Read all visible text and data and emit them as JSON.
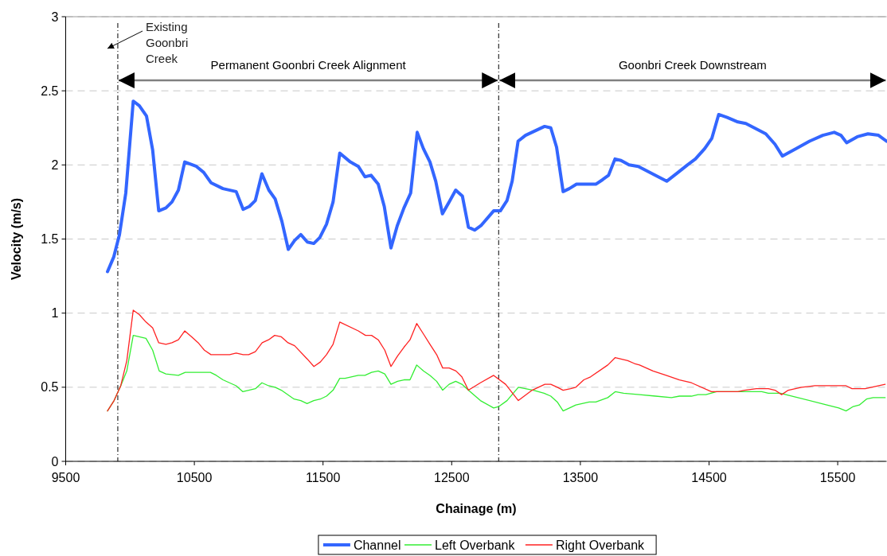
{
  "chart_data": {
    "type": "line",
    "xlabel": "Chainage (m)",
    "ylabel": "Velocity (m/s)",
    "xlim": [
      9500,
      15880
    ],
    "xticks": [
      9500,
      10500,
      11500,
      12500,
      13500,
      14500,
      15500
    ],
    "ylim": [
      0,
      3
    ],
    "yticks": [
      0,
      0.5,
      1,
      1.5,
      2,
      2.5,
      3
    ],
    "grid": "y",
    "legend": "bottom",
    "marker": "none",
    "series": [
      {
        "name": "Channel",
        "color": "#3366ff",
        "x": [
          9825,
          9874,
          9918,
          9967,
          10025,
          10072,
          10128,
          10176,
          10223,
          10279,
          10326,
          10376,
          10425,
          10516,
          10572,
          10629,
          10722,
          10825,
          10879,
          10928,
          10974,
          11025,
          11079,
          11128,
          11180,
          11230,
          11279,
          11327,
          11378,
          11428,
          11475,
          11527,
          11578,
          11630,
          11712,
          11774,
          11826,
          11873,
          11929,
          11976,
          12028,
          12077,
          12129,
          12181,
          12232,
          12280,
          12331,
          12376,
          12428,
          12480,
          12531,
          12583,
          12630,
          12678,
          12727,
          12826,
          12878,
          12930,
          12970,
          13016,
          13074,
          13222,
          13270,
          13315,
          13366,
          13414,
          13470,
          13620,
          13672,
          13719,
          13769,
          13816,
          13878,
          13950,
          14105,
          14171,
          14260,
          14332,
          14394,
          14466,
          14522,
          14575,
          14641,
          14724,
          14786,
          14941,
          15012,
          15070,
          15178,
          15281,
          15384,
          15473,
          15525,
          15569,
          15652,
          15735,
          15817,
          15879
        ],
        "values": [
          1.28,
          1.38,
          1.53,
          1.81,
          2.43,
          2.4,
          2.33,
          2.1,
          1.69,
          1.71,
          1.75,
          1.83,
          2.02,
          1.99,
          1.95,
          1.88,
          1.84,
          1.82,
          1.7,
          1.72,
          1.76,
          1.94,
          1.83,
          1.77,
          1.62,
          1.43,
          1.49,
          1.53,
          1.48,
          1.47,
          1.51,
          1.6,
          1.75,
          2.08,
          2.02,
          1.99,
          1.92,
          1.93,
          1.87,
          1.72,
          1.44,
          1.59,
          1.71,
          1.81,
          2.22,
          2.11,
          2.02,
          1.89,
          1.67,
          1.75,
          1.83,
          1.79,
          1.58,
          1.56,
          1.59,
          1.69,
          1.69,
          1.76,
          1.89,
          2.16,
          2.2,
          2.26,
          2.25,
          2.12,
          1.82,
          1.84,
          1.87,
          1.87,
          1.9,
          1.93,
          2.04,
          2.03,
          2,
          1.99,
          1.92,
          1.89,
          1.95,
          2,
          2.04,
          2.11,
          2.18,
          2.34,
          2.32,
          2.29,
          2.28,
          2.21,
          2.14,
          2.06,
          2.11,
          2.16,
          2.2,
          2.22,
          2.2,
          2.15,
          2.19,
          2.21,
          2.2,
          2.16
        ]
      },
      {
        "name": "Left Overbank",
        "color": "#33ee33",
        "x": [
          9825,
          9876,
          9928,
          9975,
          10025,
          10124,
          10176,
          10227,
          10279,
          10376,
          10429,
          10625,
          10671,
          10722,
          10825,
          10877,
          10974,
          11025,
          11077,
          11128,
          11176,
          11275,
          11327,
          11376,
          11428,
          11479,
          11527,
          11578,
          11630,
          11671,
          11774,
          11826,
          11877,
          11929,
          11980,
          12028,
          12079,
          12129,
          12176,
          12228,
          12280,
          12331,
          12383,
          12430,
          12480,
          12531,
          12579,
          12630,
          12723,
          12826,
          12867,
          12930,
          13018,
          13135,
          13218,
          13270,
          13321,
          13366,
          13465,
          13569,
          13620,
          13713,
          13771,
          13836,
          13960,
          14084,
          14208,
          14270,
          14363,
          14415,
          14476,
          14559,
          14910,
          14961,
          15054,
          15508,
          15565,
          15621,
          15668,
          15724,
          15776,
          15869
        ],
        "values": [
          0.34,
          0.41,
          0.51,
          0.61,
          0.85,
          0.83,
          0.75,
          0.61,
          0.59,
          0.58,
          0.6,
          0.6,
          0.58,
          0.55,
          0.51,
          0.47,
          0.49,
          0.53,
          0.51,
          0.5,
          0.48,
          0.42,
          0.41,
          0.39,
          0.41,
          0.42,
          0.44,
          0.48,
          0.56,
          0.56,
          0.58,
          0.58,
          0.6,
          0.61,
          0.59,
          0.52,
          0.54,
          0.55,
          0.55,
          0.65,
          0.61,
          0.58,
          0.54,
          0.48,
          0.52,
          0.54,
          0.52,
          0.48,
          0.41,
          0.36,
          0.37,
          0.41,
          0.5,
          0.48,
          0.46,
          0.44,
          0.4,
          0.34,
          0.38,
          0.4,
          0.4,
          0.43,
          0.47,
          0.46,
          0.45,
          0.44,
          0.43,
          0.44,
          0.44,
          0.45,
          0.45,
          0.47,
          0.47,
          0.46,
          0.46,
          0.36,
          0.34,
          0.37,
          0.38,
          0.42,
          0.43,
          0.43
        ]
      },
      {
        "name": "Right Overbank",
        "color": "#ff2222",
        "x": [
          9825,
          9876,
          9928,
          9975,
          10025,
          10072,
          10124,
          10176,
          10223,
          10279,
          10326,
          10376,
          10425,
          10479,
          10530,
          10578,
          10629,
          10774,
          10825,
          10879,
          10922,
          10974,
          11027,
          11077,
          11124,
          11176,
          11228,
          11279,
          11378,
          11429,
          11479,
          11527,
          11578,
          11630,
          11774,
          11830,
          11877,
          11929,
          11980,
          12028,
          12079,
          12129,
          12176,
          12228,
          12280,
          12331,
          12383,
          12430,
          12480,
          12533,
          12579,
          12630,
          12723,
          12826,
          12919,
          13018,
          13125,
          13224,
          13270,
          13321,
          13366,
          13424,
          13465,
          13527,
          13579,
          13713,
          13771,
          13868,
          13920,
          13960,
          14012,
          14064,
          14167,
          14270,
          14363,
          14518,
          14724,
          14776,
          14868,
          14961,
          15013,
          15064,
          15116,
          15219,
          15322,
          15565,
          15611,
          15714,
          15869
        ],
        "values": [
          0.34,
          0.41,
          0.51,
          0.68,
          1.02,
          0.99,
          0.94,
          0.9,
          0.8,
          0.79,
          0.8,
          0.82,
          0.88,
          0.84,
          0.8,
          0.75,
          0.72,
          0.72,
          0.73,
          0.72,
          0.72,
          0.74,
          0.8,
          0.82,
          0.85,
          0.84,
          0.8,
          0.78,
          0.69,
          0.64,
          0.67,
          0.72,
          0.79,
          0.94,
          0.88,
          0.85,
          0.85,
          0.82,
          0.75,
          0.64,
          0.71,
          0.77,
          0.82,
          0.93,
          0.86,
          0.79,
          0.72,
          0.63,
          0.63,
          0.61,
          0.57,
          0.48,
          0.53,
          0.58,
          0.52,
          0.41,
          0.48,
          0.52,
          0.52,
          0.5,
          0.48,
          0.49,
          0.5,
          0.55,
          0.57,
          0.65,
          0.7,
          0.68,
          0.66,
          0.65,
          0.63,
          0.61,
          0.58,
          0.55,
          0.53,
          0.47,
          0.47,
          0.48,
          0.49,
          0.49,
          0.48,
          0.45,
          0.48,
          0.5,
          0.51,
          0.51,
          0.49,
          0.49,
          0.52
        ]
      }
    ],
    "ref_lines": [
      {
        "axis": "x",
        "value": 9905
      },
      {
        "axis": "x",
        "value": 12865
      }
    ],
    "annotations": [
      "Existing Goonbri Creek",
      "Permanent Goonbri Creek Alignment",
      "Goonbri Creek Downstream"
    ]
  }
}
